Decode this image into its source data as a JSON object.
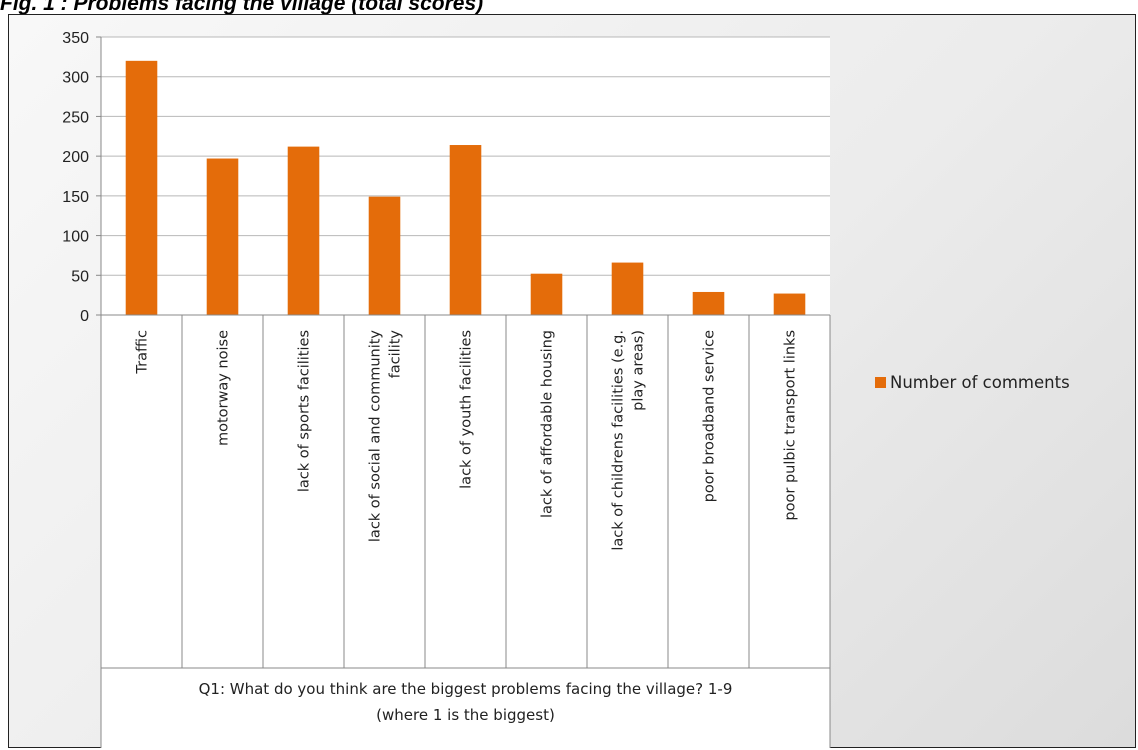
{
  "figure": {
    "title": "Fig. 1 : Problems facing the village (total scores)"
  },
  "chart_data": {
    "type": "bar",
    "categories": [
      [
        "Traffic"
      ],
      [
        "motorway noise"
      ],
      [
        "lack of sports facilities"
      ],
      [
        "lack of social and community",
        "facility"
      ],
      [
        "lack of youth facilities"
      ],
      [
        "lack of affordable housing"
      ],
      [
        "lack of childrens facilities (e.g.",
        "play areas)"
      ],
      [
        "poor broadband service"
      ],
      [
        "poor pulbic transport links"
      ]
    ],
    "series": [
      {
        "name": "Number of comments",
        "values": [
          320,
          197,
          212,
          149,
          214,
          52,
          66,
          29,
          27
        ],
        "color": "#E46C0A"
      }
    ],
    "xlabel": [
      "Q1: What do you think are the biggest problems facing the village? 1-9",
      "(where 1 is the biggest)"
    ],
    "ylabel": "",
    "ylim": [
      0,
      350
    ],
    "yticks": [
      0,
      50,
      100,
      150,
      200,
      250,
      300,
      350
    ],
    "grid": true,
    "legend_position": "right"
  }
}
